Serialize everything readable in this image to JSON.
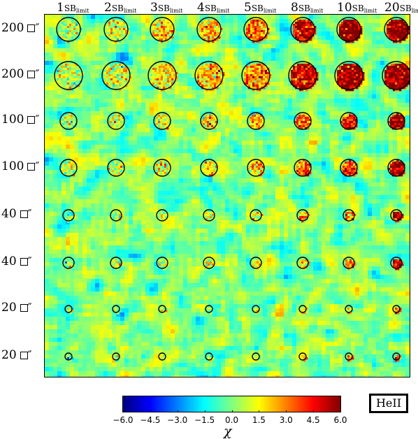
{
  "chart_data": {
    "type": "heatmap",
    "column_labels": [
      {
        "factor": "1",
        "unit": "SB",
        "sub": "limit"
      },
      {
        "factor": "2",
        "unit": "SB",
        "sub": "limit"
      },
      {
        "factor": "3",
        "unit": "SB",
        "sub": "limit"
      },
      {
        "factor": "4",
        "unit": "SB",
        "sub": "limit"
      },
      {
        "factor": "5",
        "unit": "SB",
        "sub": "limit"
      },
      {
        "factor": "8",
        "unit": "SB",
        "sub": "limit"
      },
      {
        "factor": "10",
        "unit": "SB",
        "sub": "limit"
      },
      {
        "factor": "20",
        "unit": "SB",
        "sub": "limit"
      }
    ],
    "column_factors": [
      1,
      2,
      3,
      4,
      5,
      8,
      10,
      20
    ],
    "row_labels": [
      {
        "size": "200",
        "unit": "″"
      },
      {
        "size": "200",
        "unit": "″"
      },
      {
        "size": "100",
        "unit": "″"
      },
      {
        "size": "100",
        "unit": "″"
      },
      {
        "size": "40",
        "unit": "″"
      },
      {
        "size": "40",
        "unit": "″"
      },
      {
        "size": "20",
        "unit": "″"
      },
      {
        "size": "20",
        "unit": "″"
      }
    ],
    "row_areas_arcsec2": [
      200,
      200,
      100,
      100,
      40,
      40,
      20,
      20
    ],
    "colorbar": {
      "label": "χ",
      "range": [
        -6.0,
        6.0
      ],
      "ticks": [
        "−6.0",
        "−4.5",
        "−3.0",
        "−1.5",
        "0.0",
        "1.5",
        "3.0",
        "4.5",
        "6.0"
      ],
      "tick_values": [
        -6.0,
        -4.5,
        -3.0,
        -1.5,
        0.0,
        1.5,
        3.0,
        4.5,
        6.0
      ],
      "colormap": "jet"
    },
    "line_label": "HeII",
    "circle_color": "#000000",
    "background": "noise map, chi values near 0 (cyan-green-yellow)"
  }
}
